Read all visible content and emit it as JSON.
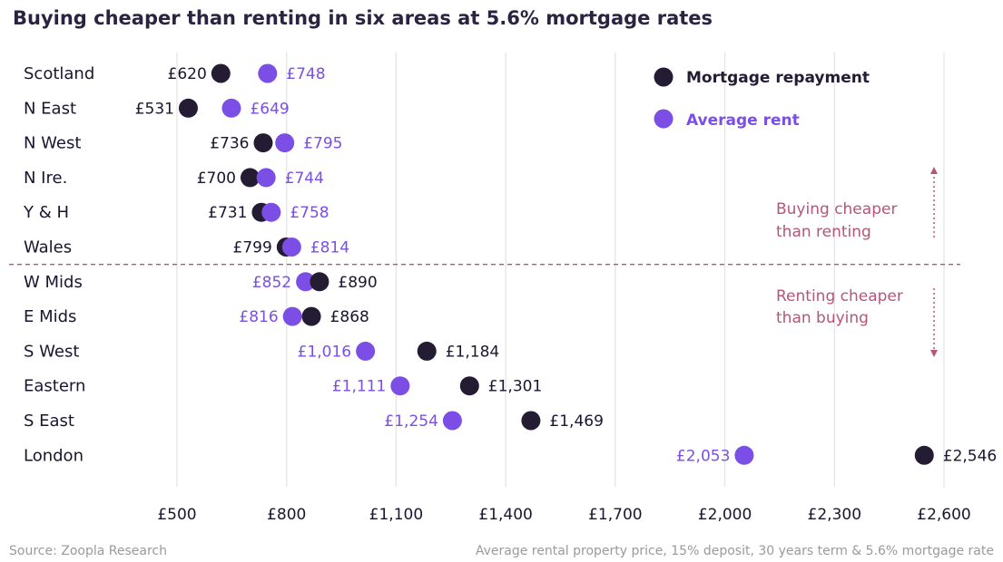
{
  "chart_data": {
    "type": "scatter",
    "title": "Buying cheaper than renting in six areas at 5.6% mortgage rates",
    "categories": [
      "Scotland",
      "N East",
      "N West",
      "N Ire.",
      "Y & H",
      "Wales",
      "W Mids",
      "E Mids",
      "S West",
      "Eastern",
      "S East",
      "London"
    ],
    "series": [
      {
        "name": "Mortgage repayment",
        "color": "#231c33",
        "values": [
          620,
          531,
          736,
          700,
          731,
          799,
          890,
          868,
          1184,
          1301,
          1469,
          2546
        ],
        "labels": [
          "£620",
          "£531",
          "£736",
          "£700",
          "£731",
          "£799",
          "£890",
          "£868",
          "£1,184",
          "£1,301",
          "£1,469",
          "£2,546"
        ]
      },
      {
        "name": "Average rent",
        "color": "#7b4ee6",
        "values": [
          748,
          649,
          795,
          744,
          758,
          814,
          852,
          816,
          1016,
          1111,
          1254,
          2053
        ],
        "labels": [
          "£748",
          "£649",
          "£795",
          "£744",
          "£758",
          "£814",
          "£852",
          "£816",
          "£1,016",
          "£1,111",
          "£1,254",
          "£2,053"
        ]
      }
    ],
    "xlim": [
      500,
      2600
    ],
    "xticks": [
      500,
      800,
      1100,
      1400,
      1700,
      2000,
      2300,
      2600
    ],
    "xtick_labels": [
      "£500",
      "£800",
      "£1,100",
      "£1,400",
      "£1,700",
      "£2,000",
      "£2,300",
      "£2,600"
    ],
    "grid": true,
    "legend_position": "top-right",
    "divider_after_category": "Wales",
    "annotations": {
      "upper": [
        "Buying cheaper",
        "than renting"
      ],
      "lower": [
        "Renting cheaper",
        "than buying"
      ]
    },
    "footer": {
      "source": "Source: Zoopla Research",
      "note": "Average rental property price, 15% deposit, 30 years term & 5.6% mortgage rate"
    }
  },
  "colors": {
    "mortgage": "#231c33",
    "rent": "#7b4ee6",
    "annotation": "#b5557a",
    "divider": "#b5557a"
  }
}
